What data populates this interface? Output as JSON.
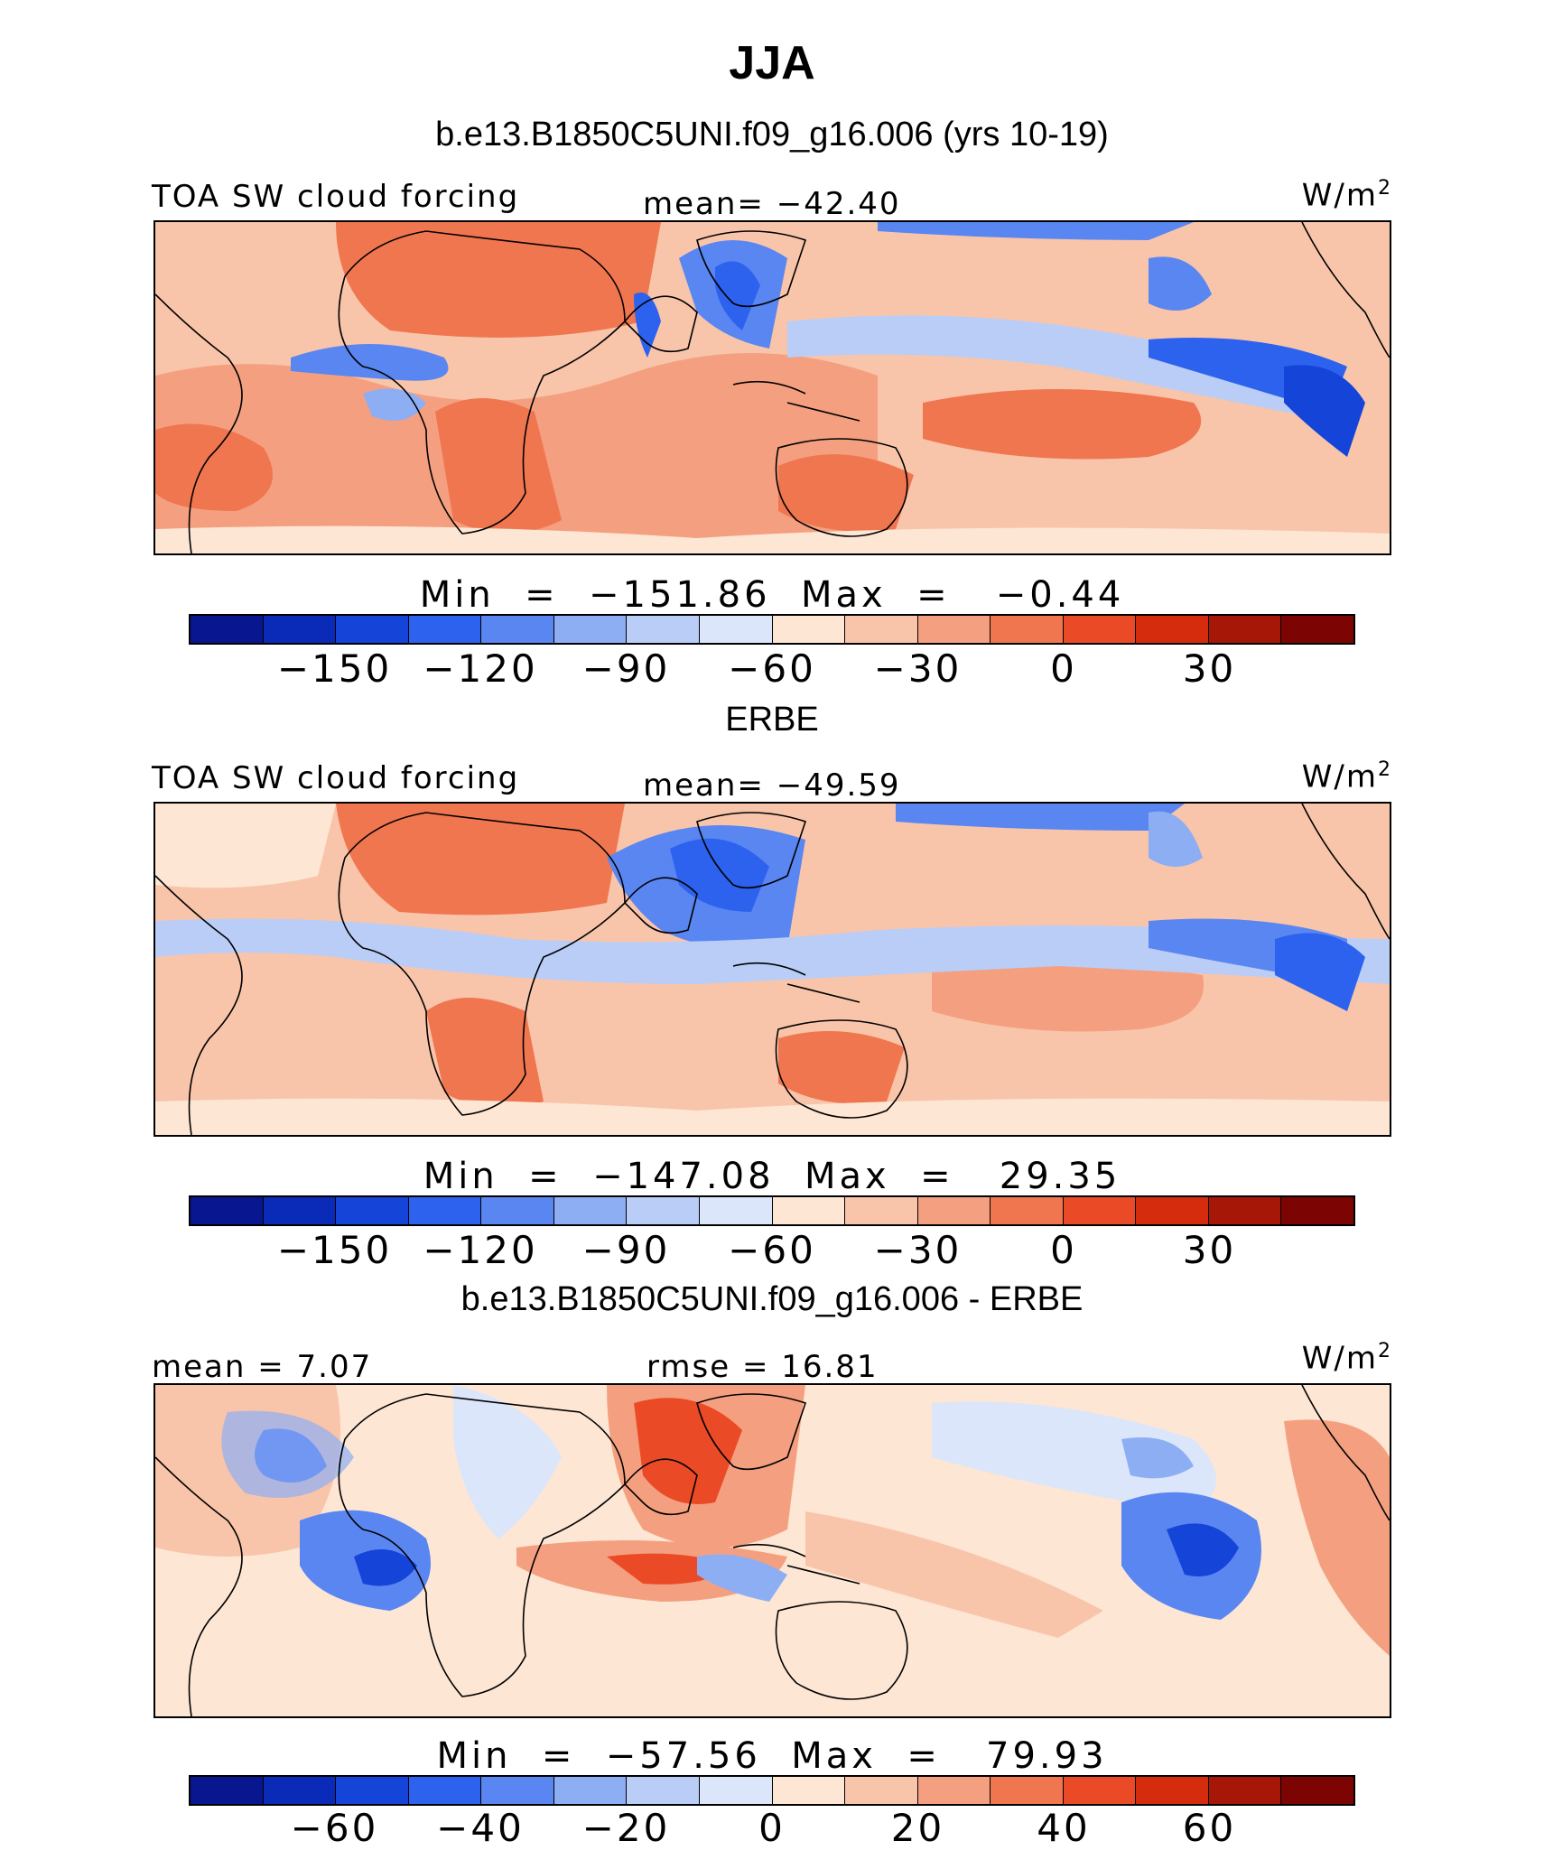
{
  "figure": {
    "title": "JJA",
    "palette": [
      "#08168f",
      "#0a2ab8",
      "#1444d8",
      "#2d62ee",
      "#5a86f2",
      "#8eaef4",
      "#b9cdf6",
      "#dbe6fa",
      "#fde6d4",
      "#f9c5aa",
      "#f4a080",
      "#f07650",
      "#ea4b26",
      "#d52c0e",
      "#a61708",
      "#7c0402"
    ]
  },
  "panels": [
    {
      "subtitle": "b.e13.B1850C5UNI.f09_g16.006 (yrs 10-19)",
      "left_label": "TOA SW cloud forcing",
      "center_label": "mean= −42.40",
      "unit": "W/m",
      "unit_sup": "2",
      "minmax": "Min  =  −151.86  Max  =   −0.44",
      "ticks": [
        "−150",
        "−120",
        "−90",
        "−60",
        "−30",
        "0",
        "30"
      ]
    },
    {
      "subtitle": "ERBE",
      "left_label": "TOA SW cloud forcing",
      "center_label": "mean= −49.59",
      "unit": "W/m",
      "unit_sup": "2",
      "minmax": "Min  =  −147.08  Max  =   29.35",
      "ticks": [
        "−150",
        "−120",
        "−90",
        "−60",
        "−30",
        "0",
        "30"
      ]
    },
    {
      "subtitle": "b.e13.B1850C5UNI.f09_g16.006 - ERBE",
      "left_label": "mean  =    7.07",
      "center_label": "rmse  =   16.81",
      "unit": "W/m",
      "unit_sup": "2",
      "minmax": "Min  =  −57.56  Max  =   79.93",
      "ticks": [
        "−60",
        "−40",
        "−20",
        "0",
        "20",
        "40",
        "60"
      ]
    }
  ]
}
